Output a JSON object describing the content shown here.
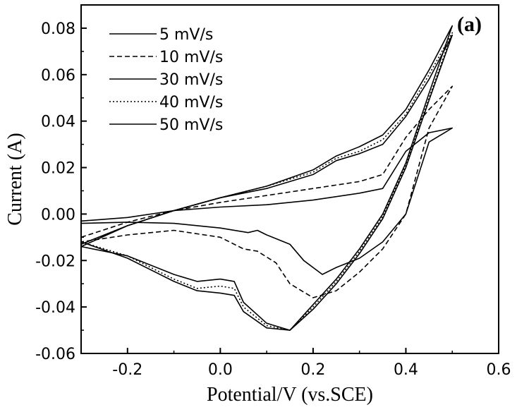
{
  "chart_data": {
    "type": "line",
    "panel_label": "(a)",
    "xlabel": "Potential/V (vs.SCE)",
    "ylabel": "Current (A)",
    "xlim": [
      -0.3,
      0.6
    ],
    "ylim": [
      -0.06,
      0.09
    ],
    "x_ticks": [
      "-0.2",
      "0.0",
      "0.2",
      "0.4",
      "0.6"
    ],
    "y_ticks": [
      "-0.06",
      "-0.04",
      "-0.02",
      "0.00",
      "0.02",
      "0.04",
      "0.06",
      "0.08"
    ],
    "legend_position": "top-left",
    "series": [
      {
        "name": "5 mV/s",
        "dash": "solid",
        "points": [
          [
            -0.3,
            -0.003
          ],
          [
            -0.2,
            -0.0015
          ],
          [
            -0.1,
            0.0015
          ],
          [
            0.0,
            0.003
          ],
          [
            0.1,
            0.004
          ],
          [
            0.2,
            0.006
          ],
          [
            0.3,
            0.009
          ],
          [
            0.35,
            0.011
          ],
          [
            0.4,
            0.027
          ],
          [
            0.45,
            0.035
          ],
          [
            0.5,
            0.037
          ],
          [
            0.45,
            0.031
          ],
          [
            0.4,
            0.0
          ],
          [
            0.35,
            -0.012
          ],
          [
            0.3,
            -0.019
          ],
          [
            0.25,
            -0.023
          ],
          [
            0.22,
            -0.026
          ],
          [
            0.18,
            -0.02
          ],
          [
            0.15,
            -0.013
          ],
          [
            0.1,
            -0.009
          ],
          [
            0.08,
            -0.007
          ],
          [
            0.06,
            -0.008
          ],
          [
            0.0,
            -0.006
          ],
          [
            -0.1,
            -0.004
          ],
          [
            -0.2,
            -0.0035
          ],
          [
            -0.3,
            -0.004
          ]
        ]
      },
      {
        "name": "10 mV/s",
        "dash": "dashed",
        "points": [
          [
            -0.3,
            -0.01
          ],
          [
            -0.2,
            -0.0035
          ],
          [
            -0.1,
            0.0015
          ],
          [
            0.0,
            0.005
          ],
          [
            0.1,
            0.008
          ],
          [
            0.2,
            0.011
          ],
          [
            0.3,
            0.014
          ],
          [
            0.35,
            0.017
          ],
          [
            0.4,
            0.033
          ],
          [
            0.45,
            0.045
          ],
          [
            0.5,
            0.055
          ],
          [
            0.45,
            0.037
          ],
          [
            0.4,
            0.0
          ],
          [
            0.35,
            -0.015
          ],
          [
            0.3,
            -0.025
          ],
          [
            0.25,
            -0.033
          ],
          [
            0.2,
            -0.036
          ],
          [
            0.15,
            -0.03
          ],
          [
            0.12,
            -0.021
          ],
          [
            0.08,
            -0.016
          ],
          [
            0.05,
            -0.015
          ],
          [
            0.0,
            -0.01
          ],
          [
            -0.1,
            -0.007
          ],
          [
            -0.2,
            -0.009
          ],
          [
            -0.3,
            -0.012
          ]
        ]
      },
      {
        "name": "30 mV/s",
        "dash": "solid",
        "points": [
          [
            -0.3,
            -0.014
          ],
          [
            -0.2,
            -0.005
          ],
          [
            -0.1,
            0.0015
          ],
          [
            0.0,
            0.007
          ],
          [
            0.1,
            0.012
          ],
          [
            0.2,
            0.019
          ],
          [
            0.25,
            0.025
          ],
          [
            0.3,
            0.029
          ],
          [
            0.35,
            0.034
          ],
          [
            0.4,
            0.045
          ],
          [
            0.45,
            0.062
          ],
          [
            0.5,
            0.081
          ],
          [
            0.45,
            0.052
          ],
          [
            0.4,
            0.022
          ],
          [
            0.35,
            0.0
          ],
          [
            0.3,
            -0.015
          ],
          [
            0.25,
            -0.028
          ],
          [
            0.2,
            -0.039
          ],
          [
            0.15,
            -0.05
          ],
          [
            0.1,
            -0.047
          ],
          [
            0.05,
            -0.038
          ],
          [
            0.03,
            -0.029
          ],
          [
            0.0,
            -0.028
          ],
          [
            -0.05,
            -0.029
          ],
          [
            -0.1,
            -0.026
          ],
          [
            -0.2,
            -0.018
          ],
          [
            -0.3,
            -0.014
          ]
        ]
      },
      {
        "name": "40 mV/s",
        "dash": "dotted",
        "points": [
          [
            -0.3,
            -0.013
          ],
          [
            -0.2,
            -0.005
          ],
          [
            -0.1,
            0.0015
          ],
          [
            0.0,
            0.007
          ],
          [
            0.1,
            0.012
          ],
          [
            0.2,
            0.018
          ],
          [
            0.25,
            0.024
          ],
          [
            0.3,
            0.027
          ],
          [
            0.35,
            0.032
          ],
          [
            0.4,
            0.043
          ],
          [
            0.45,
            0.06
          ],
          [
            0.5,
            0.078
          ],
          [
            0.45,
            0.05
          ],
          [
            0.4,
            0.021
          ],
          [
            0.35,
            -0.001
          ],
          [
            0.3,
            -0.016
          ],
          [
            0.25,
            -0.029
          ],
          [
            0.2,
            -0.04
          ],
          [
            0.15,
            -0.05
          ],
          [
            0.1,
            -0.048
          ],
          [
            0.05,
            -0.04
          ],
          [
            0.03,
            -0.032
          ],
          [
            0.0,
            -0.031
          ],
          [
            -0.05,
            -0.032
          ],
          [
            -0.1,
            -0.028
          ],
          [
            -0.2,
            -0.018
          ],
          [
            -0.3,
            -0.012
          ]
        ]
      },
      {
        "name": "50 mV/s",
        "dash": "solid",
        "points": [
          [
            -0.3,
            -0.013
          ],
          [
            -0.2,
            -0.005
          ],
          [
            -0.1,
            0.0015
          ],
          [
            0.0,
            0.007
          ],
          [
            0.1,
            0.011
          ],
          [
            0.2,
            0.017
          ],
          [
            0.25,
            0.023
          ],
          [
            0.3,
            0.026
          ],
          [
            0.35,
            0.03
          ],
          [
            0.4,
            0.042
          ],
          [
            0.45,
            0.058
          ],
          [
            0.5,
            0.077
          ],
          [
            0.45,
            0.049
          ],
          [
            0.4,
            0.02
          ],
          [
            0.35,
            -0.002
          ],
          [
            0.3,
            -0.017
          ],
          [
            0.25,
            -0.03
          ],
          [
            0.2,
            -0.041
          ],
          [
            0.15,
            -0.05
          ],
          [
            0.1,
            -0.049
          ],
          [
            0.05,
            -0.042
          ],
          [
            0.03,
            -0.035
          ],
          [
            0.0,
            -0.034
          ],
          [
            -0.05,
            -0.033
          ],
          [
            -0.1,
            -0.029
          ],
          [
            -0.2,
            -0.019
          ],
          [
            -0.3,
            -0.012
          ]
        ]
      }
    ]
  }
}
